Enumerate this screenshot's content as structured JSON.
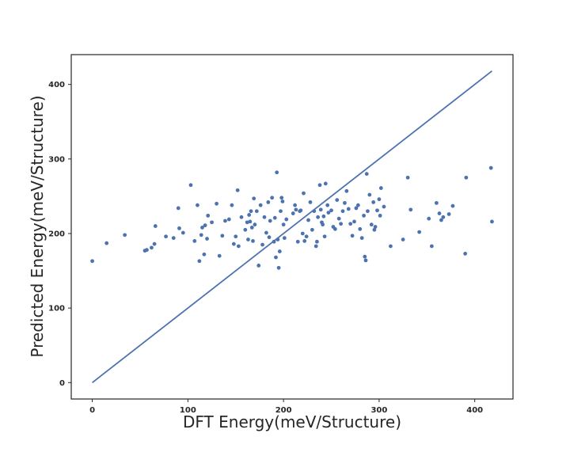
{
  "chart_data": {
    "type": "scatter",
    "title": "",
    "xlabel": "DFT Energy(meV/Structure)",
    "ylabel": "Predicted Energy(meV/Structure)",
    "xlim": [
      -22,
      440
    ],
    "ylim": [
      -22,
      440
    ],
    "x_ticks": [
      0,
      100,
      200,
      300,
      400
    ],
    "y_ticks": [
      0,
      100,
      200,
      300,
      400
    ],
    "grid": false,
    "legend": "none",
    "colors": {
      "points": "#4c72b0",
      "line": "#4c72b0",
      "axes": "#262626"
    },
    "reference_line": {
      "x": [
        0,
        418
      ],
      "y": [
        0,
        418
      ]
    },
    "series": [
      {
        "x": [
          0,
          15,
          34,
          55,
          57,
          62,
          65,
          66,
          77,
          85,
          90,
          91,
          95,
          103,
          107,
          110,
          112,
          114,
          115,
          117,
          118,
          120,
          121,
          125,
          130,
          133,
          136,
          139,
          143,
          146,
          148,
          150,
          152,
          153,
          156,
          160,
          162,
          163,
          164,
          165,
          166,
          167,
          168,
          169,
          170,
          172,
          174,
          176,
          178,
          180,
          182,
          184,
          185,
          186,
          188,
          190,
          191,
          192,
          193,
          194,
          195,
          196,
          197,
          198,
          199,
          200,
          201,
          203,
          210,
          212,
          213,
          215,
          217,
          218,
          220,
          221,
          222,
          224,
          226,
          228,
          230,
          232,
          234,
          235,
          236,
          238,
          239,
          240,
          241,
          242,
          243,
          244,
          246,
          247,
          250,
          252,
          254,
          256,
          258,
          260,
          262,
          264,
          266,
          268,
          270,
          272,
          274,
          276,
          278,
          280,
          282,
          284,
          285,
          286,
          287,
          288,
          290,
          292,
          294,
          295,
          296,
          298,
          300,
          301,
          302,
          305,
          312,
          325,
          330,
          333,
          342,
          352,
          355,
          360,
          363,
          365,
          367,
          373,
          377,
          390,
          391,
          417,
          418
        ],
        "y": [
          163,
          187,
          198,
          177,
          178,
          181,
          186,
          210,
          196,
          194,
          234,
          207,
          201,
          265,
          190,
          238,
          163,
          198,
          208,
          172,
          211,
          193,
          224,
          215,
          240,
          170,
          197,
          217,
          219,
          238,
          186,
          196,
          258,
          183,
          222,
          205,
          215,
          192,
          225,
          216,
          230,
          208,
          190,
          247,
          212,
          230,
          157,
          238,
          185,
          222,
          201,
          242,
          195,
          217,
          248,
          189,
          221,
          168,
          282,
          192,
          154,
          176,
          230,
          248,
          243,
          212,
          194,
          219,
          227,
          238,
          232,
          189,
          230,
          231,
          200,
          254,
          190,
          196,
          218,
          242,
          205,
          230,
          183,
          189,
          222,
          265,
          232,
          215,
          212,
          223,
          196,
          267,
          238,
          228,
          231,
          209,
          206,
          245,
          220,
          213,
          230,
          241,
          257,
          233,
          213,
          197,
          216,
          234,
          238,
          206,
          194,
          224,
          169,
          164,
          280,
          230,
          252,
          212,
          242,
          205,
          209,
          231,
          246,
          224,
          261,
          236,
          183,
          192,
          275,
          232,
          202,
          220,
          183,
          241,
          227,
          218,
          222,
          226,
          237,
          173,
          275,
          288,
          216
        ]
      }
    ]
  }
}
